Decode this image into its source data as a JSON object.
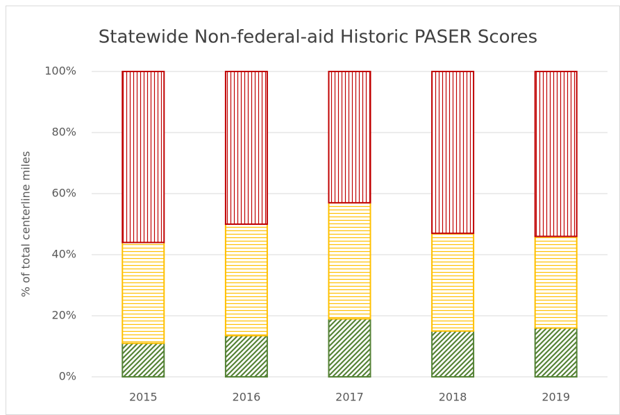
{
  "chart_data": {
    "type": "stacked_bar",
    "title": "Statewide Non-federal-aid Historic PASER Scores",
    "y_label": "% of total centerline miles",
    "categories": [
      "2015",
      "2016",
      "2017",
      "2018",
      "2019"
    ],
    "series": [
      {
        "color": "#548235",
        "pattern": "diagonal",
        "values": [
          11,
          13.5,
          19,
          15,
          16
        ]
      },
      {
        "color": "#ffc000",
        "pattern": "horizontal",
        "values": [
          33,
          36.5,
          38,
          32,
          30
        ]
      },
      {
        "color": "#c00000",
        "pattern": "vertical",
        "values": [
          56,
          50,
          43,
          53,
          54
        ]
      }
    ],
    "ylim": [
      0,
      100
    ],
    "yticks": [
      {
        "value": 0,
        "label": "0%"
      },
      {
        "value": 20,
        "label": "20%"
      },
      {
        "value": 40,
        "label": "40%"
      },
      {
        "value": 60,
        "label": "60%"
      },
      {
        "value": 80,
        "label": "80%"
      },
      {
        "value": 100,
        "label": "100%"
      }
    ],
    "grid": true
  }
}
